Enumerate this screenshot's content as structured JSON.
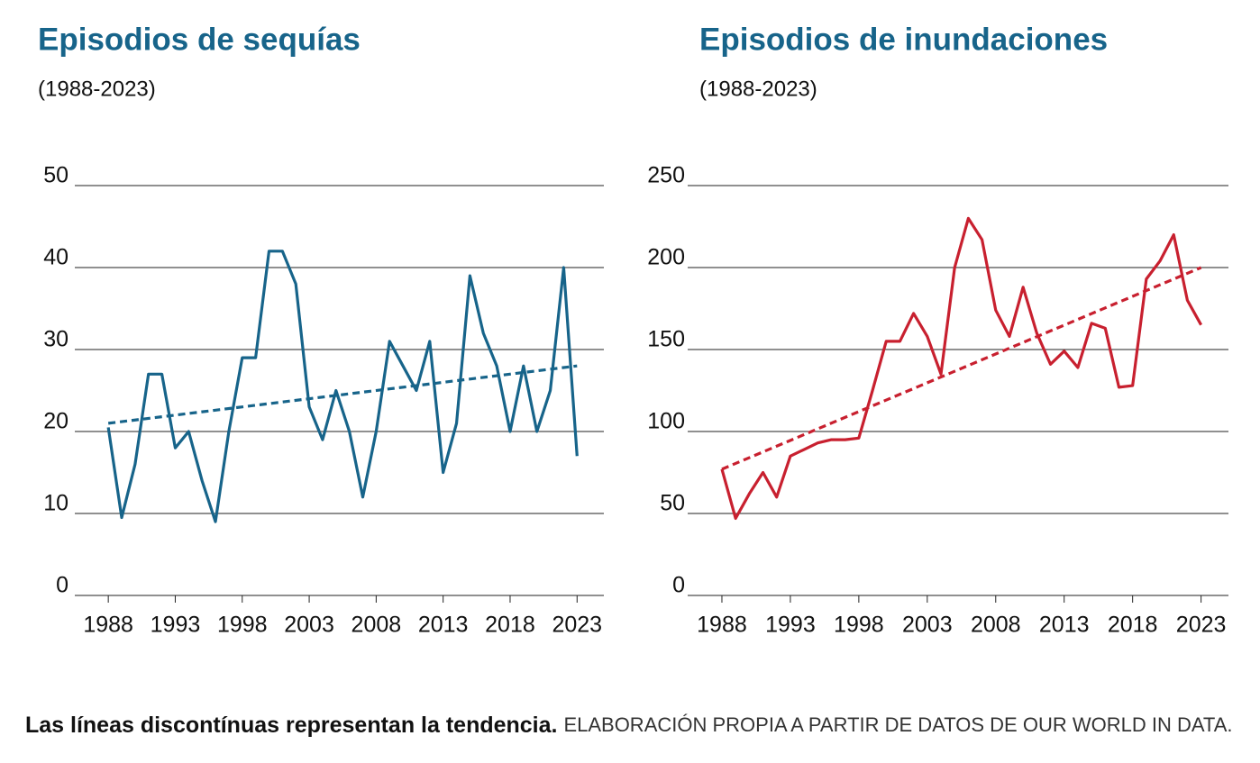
{
  "chart_data": [
    {
      "type": "line",
      "title": "Episodios de sequías",
      "subtitle": "(1988-2023)",
      "x": [
        1988,
        1989,
        1990,
        1991,
        1992,
        1993,
        1994,
        1995,
        1996,
        1997,
        1998,
        1999,
        2000,
        2001,
        2002,
        2003,
        2004,
        2005,
        2006,
        2007,
        2008,
        2009,
        2010,
        2011,
        2012,
        2013,
        2014,
        2015,
        2016,
        2017,
        2018,
        2019,
        2020,
        2021,
        2022,
        2023
      ],
      "series": [
        {
          "color": "#17648a",
          "values": [
            20.5,
            9.5,
            16,
            27,
            27,
            18,
            20,
            14,
            9,
            20,
            29,
            29,
            42,
            42,
            38,
            23,
            19,
            25,
            20,
            12,
            20,
            31,
            28,
            25,
            31,
            15,
            21,
            39,
            32,
            28,
            20,
            28,
            20,
            25,
            40,
            17
          ]
        }
      ],
      "trend": {
        "x": [
          1988,
          2023
        ],
        "values": [
          21,
          28
        ],
        "color": "#17648a"
      },
      "xlim": [
        1985.5,
        2025
      ],
      "ylim": [
        0,
        50
      ],
      "xticks": [
        1988,
        1993,
        1998,
        2003,
        2008,
        2013,
        2018,
        2023
      ],
      "yticks": [
        0,
        10,
        20,
        30,
        40,
        50
      ],
      "grid": true
    },
    {
      "type": "line",
      "title": "Episodios de inundaciones",
      "subtitle": "(1988-2023)",
      "x": [
        1988,
        1989,
        1990,
        1991,
        1992,
        1993,
        1994,
        1995,
        1996,
        1997,
        1998,
        1999,
        2000,
        2001,
        2002,
        2003,
        2004,
        2005,
        2006,
        2007,
        2008,
        2009,
        2010,
        2011,
        2012,
        2013,
        2014,
        2015,
        2016,
        2017,
        2018,
        2019,
        2020,
        2021,
        2022,
        2023
      ],
      "series": [
        {
          "color": "#c8202f",
          "values": [
            77,
            47,
            62,
            75,
            60,
            85,
            89,
            93,
            95,
            95,
            96,
            125,
            155,
            155,
            172,
            158,
            135,
            200,
            230,
            217,
            174,
            158,
            188,
            160,
            141,
            149,
            139,
            166,
            163,
            127,
            128,
            193,
            204,
            220,
            180,
            165
          ]
        }
      ],
      "trend": {
        "x": [
          1988,
          2023
        ],
        "values": [
          77,
          200
        ],
        "color": "#c8202f"
      },
      "xlim": [
        1985.5,
        2025
      ],
      "ylim": [
        0,
        250
      ],
      "xticks": [
        1988,
        1993,
        1998,
        2003,
        2008,
        2013,
        2018,
        2023
      ],
      "yticks": [
        0,
        50,
        100,
        150,
        200,
        250
      ],
      "grid": true
    }
  ],
  "footer": {
    "bold": "Las líneas discontínuas representan la tendencia.",
    "text": "ELABORACIÓN PROPIA A PARTIR DE DATOS DE OUR WORLD IN DATA."
  }
}
